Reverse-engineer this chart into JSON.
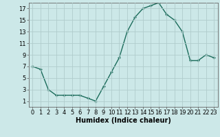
{
  "x": [
    0,
    1,
    2,
    3,
    4,
    5,
    6,
    7,
    8,
    9,
    10,
    11,
    12,
    13,
    14,
    15,
    16,
    17,
    18,
    19,
    20,
    21,
    22,
    23
  ],
  "y": [
    7,
    6.5,
    3,
    2,
    2,
    2,
    2,
    1.5,
    1,
    3.5,
    6,
    8.5,
    13,
    15.5,
    17,
    17.5,
    18,
    16,
    15,
    13,
    8,
    8,
    9,
    8.5
  ],
  "line_color": "#1a6b5a",
  "marker_color": "#1a6b5a",
  "bg_color": "#cce8e8",
  "grid_color": "#b0cccc",
  "xlabel": "Humidex (Indice chaleur)",
  "xlim": [
    -0.5,
    23.5
  ],
  "ylim": [
    0,
    18
  ],
  "xticks": [
    0,
    1,
    2,
    3,
    4,
    5,
    6,
    7,
    8,
    9,
    10,
    11,
    12,
    13,
    14,
    15,
    16,
    17,
    18,
    19,
    20,
    21,
    22,
    23
  ],
  "yticks": [
    1,
    3,
    5,
    7,
    9,
    11,
    13,
    15,
    17
  ],
  "xlabel_fontsize": 7,
  "tick_fontsize": 6,
  "marker_size": 2.5,
  "line_width": 1.0
}
